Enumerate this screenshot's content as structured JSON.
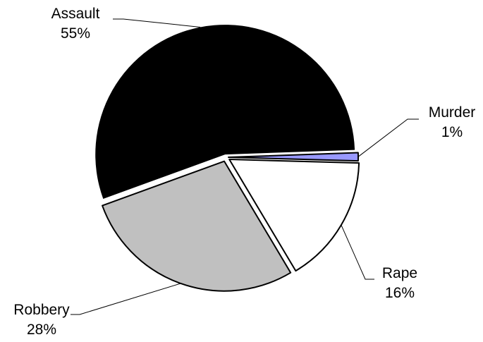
{
  "chart_data": {
    "type": "pie",
    "title": "",
    "exploded": true,
    "slices": [
      {
        "label": "Murder",
        "value": 1,
        "value_text": "1%",
        "color": "#9999ff"
      },
      {
        "label": "Rape",
        "value": 16,
        "value_text": "16%",
        "color": "#ffffff"
      },
      {
        "label": "Robbery",
        "value": 28,
        "value_text": "28%",
        "color": "#c0c0c0"
      },
      {
        "label": "Assault",
        "value": 55,
        "value_text": "55%",
        "color": "#000000"
      }
    ]
  }
}
